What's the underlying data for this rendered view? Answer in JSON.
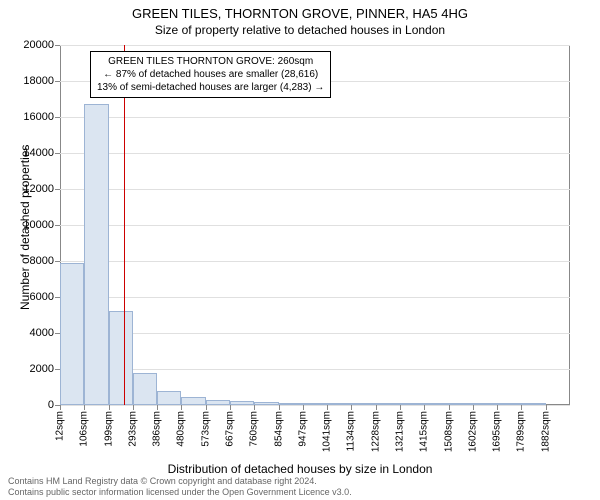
{
  "title": {
    "main": "GREEN TILES, THORNTON GROVE, PINNER, HA5 4HG",
    "sub": "Size of property relative to detached houses in London",
    "fontsize_main": 13,
    "fontsize_sub": 12
  },
  "chart": {
    "type": "histogram",
    "background_color": "#ffffff",
    "grid_color": "#e0e0e0",
    "axis_color": "#888888",
    "ylabel": "Number of detached properties",
    "xlabel": "Distribution of detached houses by size in London",
    "label_fontsize": 12,
    "tick_fontsize": 11,
    "ylim": [
      0,
      20000
    ],
    "ytick_step": 2000,
    "yticks": [
      0,
      2000,
      4000,
      6000,
      8000,
      10000,
      12000,
      14000,
      16000,
      18000,
      20000
    ],
    "xticks": [
      "12sqm",
      "106sqm",
      "199sqm",
      "293sqm",
      "386sqm",
      "480sqm",
      "573sqm",
      "667sqm",
      "760sqm",
      "854sqm",
      "947sqm",
      "1041sqm",
      "1134sqm",
      "1228sqm",
      "1321sqm",
      "1415sqm",
      "1508sqm",
      "1602sqm",
      "1695sqm",
      "1789sqm",
      "1882sqm"
    ],
    "bars": [
      {
        "x_index": 0,
        "value": 7900
      },
      {
        "x_index": 1,
        "value": 16700
      },
      {
        "x_index": 2,
        "value": 5200
      },
      {
        "x_index": 3,
        "value": 1800
      },
      {
        "x_index": 4,
        "value": 800
      },
      {
        "x_index": 5,
        "value": 450
      },
      {
        "x_index": 6,
        "value": 300
      },
      {
        "x_index": 7,
        "value": 200
      },
      {
        "x_index": 8,
        "value": 150
      },
      {
        "x_index": 9,
        "value": 100
      },
      {
        "x_index": 10,
        "value": 60
      },
      {
        "x_index": 11,
        "value": 50
      },
      {
        "x_index": 12,
        "value": 40
      },
      {
        "x_index": 13,
        "value": 30
      },
      {
        "x_index": 14,
        "value": 20
      },
      {
        "x_index": 15,
        "value": 20
      },
      {
        "x_index": 16,
        "value": 15
      },
      {
        "x_index": 17,
        "value": 10
      },
      {
        "x_index": 18,
        "value": 10
      },
      {
        "x_index": 19,
        "value": 5
      }
    ],
    "bar_fill": "#dbe5f1",
    "bar_stroke": "#9db4d4",
    "bar_width_ratio": 1.0,
    "marker": {
      "position_sqm": 260,
      "fraction_between_ticks": 0.65,
      "tick_left_index": 2,
      "color": "#cc0000"
    },
    "annotation": {
      "line1": "GREEN TILES THORNTON GROVE: 260sqm",
      "line2": "← 87% of detached houses are smaller (28,616)",
      "line3": "13% of semi-detached houses are larger (4,283) →",
      "border_color": "#000000",
      "bg_color": "#ffffff",
      "fontsize": 10
    }
  },
  "footer": {
    "line1": "Contains HM Land Registry data © Crown copyright and database right 2024.",
    "line2": "Contains public sector information licensed under the Open Government Licence v3.0.",
    "fontsize": 9,
    "color": "#666666"
  }
}
